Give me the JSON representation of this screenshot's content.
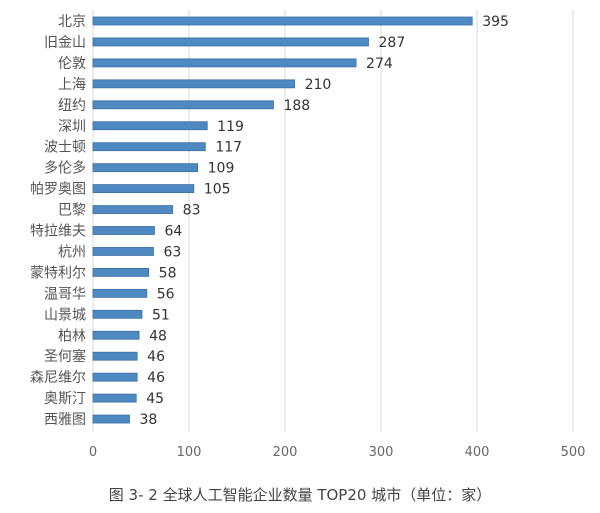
{
  "chart_data": {
    "type": "bar",
    "orientation": "horizontal",
    "title": "图 3- 2  全球人工智能企业数量 TOP20 城市（单位：家）",
    "categories": [
      "北京",
      "旧金山",
      "伦敦",
      "上海",
      "纽约",
      "深圳",
      "波士顿",
      "多伦多",
      "帕罗奥图",
      "巴黎",
      "特拉维夫",
      "杭州",
      "蒙特利尔",
      "温哥华",
      "山景城",
      "柏林",
      "圣何塞",
      "森尼维尔",
      "奥斯汀",
      "西雅图"
    ],
    "values": [
      395,
      287,
      274,
      210,
      188,
      119,
      117,
      109,
      105,
      83,
      64,
      63,
      58,
      56,
      51,
      48,
      46,
      46,
      45,
      38
    ],
    "xlim": [
      0,
      500
    ],
    "xticks": [
      "0",
      "100",
      "200",
      "300",
      "400",
      "500"
    ],
    "grid": "vertical",
    "bar_color": "#4f89c2",
    "bar_edge_color": "#3a6fa3",
    "data_labels": true
  }
}
